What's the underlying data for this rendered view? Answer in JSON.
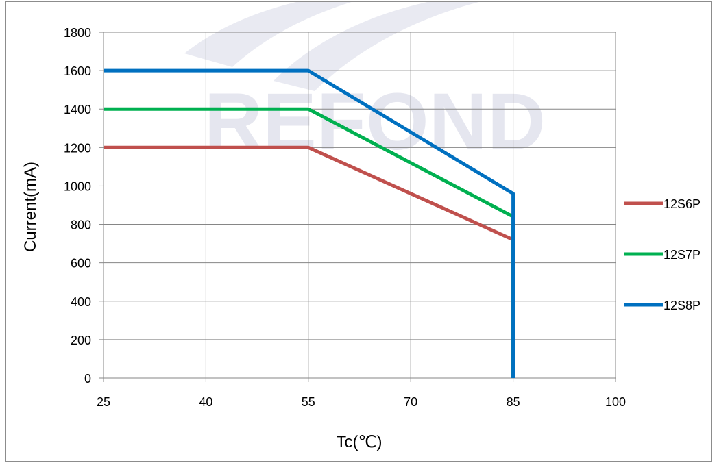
{
  "watermark": "REFOND",
  "chart_data": {
    "type": "line",
    "title": "",
    "xlabel": "Tc(℃)",
    "ylabel": "Current(mA)",
    "xlim": [
      25,
      100
    ],
    "ylim": [
      0,
      1800
    ],
    "x_ticks": [
      25,
      40,
      55,
      70,
      85,
      100
    ],
    "y_ticks": [
      0,
      200,
      400,
      600,
      800,
      1000,
      1200,
      1400,
      1600,
      1800
    ],
    "grid": true,
    "legend_position": "right",
    "series": [
      {
        "name": "12S6P",
        "color": "#c0504d",
        "points": [
          [
            25,
            1200
          ],
          [
            55,
            1200
          ],
          [
            85,
            720
          ],
          [
            85,
            0
          ]
        ]
      },
      {
        "name": "12S7P",
        "color": "#00b050",
        "points": [
          [
            25,
            1400
          ],
          [
            55,
            1400
          ],
          [
            85,
            840
          ],
          [
            85,
            0
          ]
        ]
      },
      {
        "name": "12S8P",
        "color": "#0070c0",
        "points": [
          [
            25,
            1600
          ],
          [
            55,
            1600
          ],
          [
            85,
            960
          ],
          [
            85,
            0
          ]
        ]
      }
    ]
  }
}
